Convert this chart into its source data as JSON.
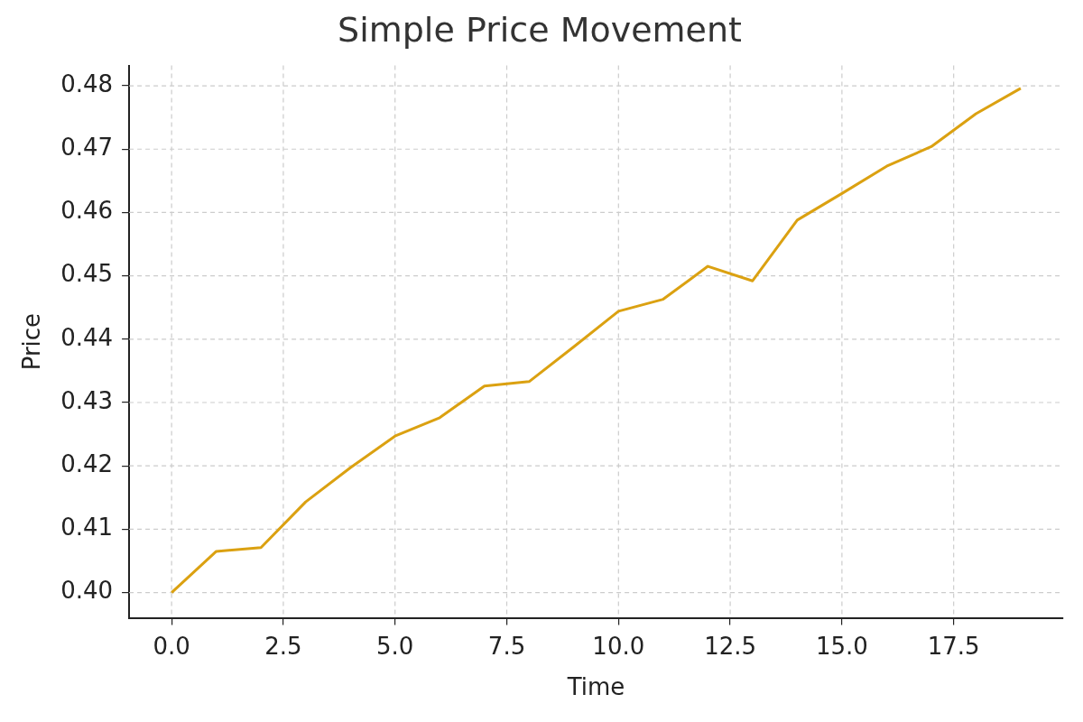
{
  "chart_data": {
    "type": "line",
    "title": "Simple Price Movement",
    "xlabel": "Time",
    "ylabel": "Price",
    "x": [
      0,
      1,
      2,
      3,
      4,
      5,
      6,
      7,
      8,
      9,
      10,
      11,
      12,
      13,
      14,
      15,
      16,
      17,
      18,
      19
    ],
    "series": [
      {
        "color": "#dba111",
        "values": [
          0.4,
          0.4065,
          0.4071,
          0.4143,
          0.4197,
          0.4247,
          0.4276,
          0.4326,
          0.4333,
          0.4388,
          0.4444,
          0.4463,
          0.4515,
          0.4492,
          0.4588,
          0.463,
          0.4673,
          0.4704,
          0.4756,
          0.4796
        ]
      }
    ],
    "xlim": [
      -0.95,
      19.95
    ],
    "ylim": [
      0.396,
      0.4832
    ],
    "xticks": [
      {
        "value": 0,
        "label": "0.0"
      },
      {
        "value": 2.5,
        "label": "2.5"
      },
      {
        "value": 5,
        "label": "5.0"
      },
      {
        "value": 7.5,
        "label": "7.5"
      },
      {
        "value": 10,
        "label": "10.0"
      },
      {
        "value": 12.5,
        "label": "12.5"
      },
      {
        "value": 15,
        "label": "15.0"
      },
      {
        "value": 17.5,
        "label": "17.5"
      }
    ],
    "yticks": [
      {
        "value": 0.4,
        "label": "0.40"
      },
      {
        "value": 0.41,
        "label": "0.41"
      },
      {
        "value": 0.42,
        "label": "0.42"
      },
      {
        "value": 0.43,
        "label": "0.43"
      },
      {
        "value": 0.44,
        "label": "0.44"
      },
      {
        "value": 0.45,
        "label": "0.45"
      },
      {
        "value": 0.46,
        "label": "0.46"
      },
      {
        "value": 0.47,
        "label": "0.47"
      },
      {
        "value": 0.48,
        "label": "0.48"
      }
    ],
    "grid": true,
    "legend": false,
    "marker": "none",
    "line_style": "solid"
  }
}
